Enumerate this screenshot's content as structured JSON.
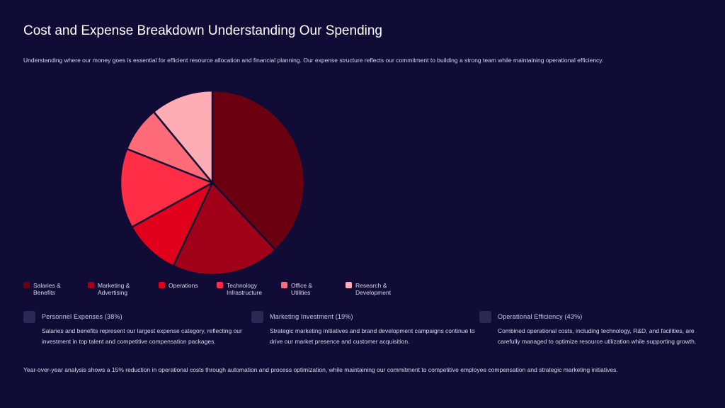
{
  "title": "Cost and Expense Breakdown Understanding Our Spending",
  "subtitle": "Understanding where our money goes is essential for efficient resource allocation and financial planning. Our expense structure reflects our commitment to building a strong team while maintaining operational efficiency.",
  "chart_data": {
    "type": "pie",
    "categories": [
      "Salaries & Benefits",
      "Marketing & Advertising",
      "Operations",
      "Technology Infrastructure",
      "Office & Utilities",
      "Research & Development"
    ],
    "values": [
      38,
      19,
      10,
      14,
      8,
      11
    ],
    "colors": [
      "#6b0010",
      "#a00018",
      "#e0001c",
      "#ff2d46",
      "#ff6b78",
      "#ffadb5"
    ]
  },
  "cards": [
    {
      "title": "Personnel Expenses (38%)",
      "text": "Salaries and benefits represent our largest expense category, reflecting our investment in top talent and competitive compensation packages."
    },
    {
      "title": "Marketing Investment (19%)",
      "text": "Strategic marketing initiatives and brand development campaigns continue to drive our market presence and customer acquisition."
    },
    {
      "title": "Operational Efficiency (43%)",
      "text": "Combined operational costs, including technology, R&D, and facilities, are carefully managed to optimize resource utilization while supporting growth."
    }
  ],
  "footer": "Year-over-year analysis shows a 15% reduction in operational costs through automation and process optimization, while maintaining our commitment to competitive employee compensation and strategic marketing initiatives."
}
